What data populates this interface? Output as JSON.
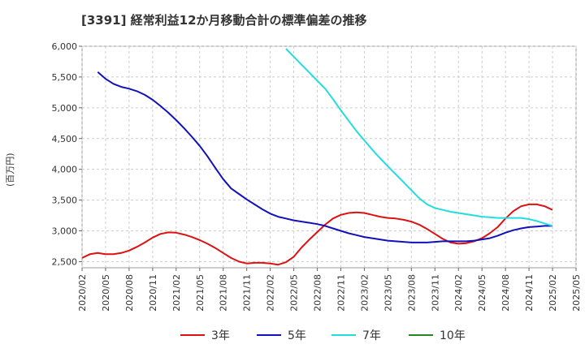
{
  "chart_data": {
    "type": "line",
    "title": "[3391]  経常利益12か月移動合計の標準偏差の推移",
    "ylabel": "(百万円)",
    "xlabel": "",
    "ylim": [
      2400,
      6000
    ],
    "yticks": [
      2500,
      3000,
      3500,
      4000,
      4500,
      5000,
      5500,
      6000
    ],
    "ytick_labels": [
      "2,500",
      "3,000",
      "3,500",
      "4,000",
      "4,500",
      "5,000",
      "5,500",
      "6,000"
    ],
    "xticks": [
      "2020/02",
      "2020/05",
      "2020/08",
      "2020/11",
      "2021/02",
      "2021/05",
      "2021/08",
      "2021/11",
      "2022/02",
      "2022/05",
      "2022/08",
      "2022/11",
      "2023/02",
      "2023/05",
      "2023/08",
      "2023/11",
      "2024/02",
      "2024/05",
      "2024/08",
      "2024/11",
      "2025/02",
      "2025/05"
    ],
    "grid": true,
    "legend_position": "bottom",
    "series": [
      {
        "name": "3年",
        "color": "#dd1111",
        "points": [
          [
            "2020/02",
            2560
          ],
          [
            "2020/03",
            2620
          ],
          [
            "2020/04",
            2640
          ],
          [
            "2020/05",
            2620
          ],
          [
            "2020/06",
            2620
          ],
          [
            "2020/07",
            2640
          ],
          [
            "2020/08",
            2680
          ],
          [
            "2020/09",
            2740
          ],
          [
            "2020/10",
            2810
          ],
          [
            "2020/11",
            2890
          ],
          [
            "2020/12",
            2950
          ],
          [
            "2021/01",
            2975
          ],
          [
            "2021/02",
            2970
          ],
          [
            "2021/03",
            2940
          ],
          [
            "2021/04",
            2900
          ],
          [
            "2021/05",
            2850
          ],
          [
            "2021/06",
            2790
          ],
          [
            "2021/07",
            2720
          ],
          [
            "2021/08",
            2640
          ],
          [
            "2021/09",
            2560
          ],
          [
            "2021/10",
            2500
          ],
          [
            "2021/11",
            2470
          ],
          [
            "2021/12",
            2480
          ],
          [
            "2022/01",
            2480
          ],
          [
            "2022/02",
            2470
          ],
          [
            "2022/03",
            2450
          ],
          [
            "2022/04",
            2490
          ],
          [
            "2022/05",
            2580
          ],
          [
            "2022/06",
            2730
          ],
          [
            "2022/07",
            2860
          ],
          [
            "2022/08",
            2980
          ],
          [
            "2022/09",
            3100
          ],
          [
            "2022/10",
            3200
          ],
          [
            "2022/11",
            3260
          ],
          [
            "2022/12",
            3290
          ],
          [
            "2023/01",
            3300
          ],
          [
            "2023/02",
            3290
          ],
          [
            "2023/03",
            3260
          ],
          [
            "2023/04",
            3230
          ],
          [
            "2023/05",
            3210
          ],
          [
            "2023/06",
            3200
          ],
          [
            "2023/07",
            3180
          ],
          [
            "2023/08",
            3150
          ],
          [
            "2023/09",
            3100
          ],
          [
            "2023/10",
            3030
          ],
          [
            "2023/11",
            2950
          ],
          [
            "2023/12",
            2870
          ],
          [
            "2024/01",
            2810
          ],
          [
            "2024/02",
            2790
          ],
          [
            "2024/03",
            2800
          ],
          [
            "2024/04",
            2830
          ],
          [
            "2024/05",
            2880
          ],
          [
            "2024/06",
            2960
          ],
          [
            "2024/07",
            3060
          ],
          [
            "2024/08",
            3200
          ],
          [
            "2024/09",
            3320
          ],
          [
            "2024/10",
            3400
          ],
          [
            "2024/11",
            3430
          ],
          [
            "2024/12",
            3430
          ],
          [
            "2025/01",
            3400
          ],
          [
            "2025/02",
            3340
          ]
        ]
      },
      {
        "name": "5年",
        "color": "#1111bb",
        "points": [
          [
            "2020/04",
            5580
          ],
          [
            "2020/05",
            5470
          ],
          [
            "2020/06",
            5390
          ],
          [
            "2020/07",
            5340
          ],
          [
            "2020/08",
            5310
          ],
          [
            "2020/09",
            5270
          ],
          [
            "2020/10",
            5210
          ],
          [
            "2020/11",
            5130
          ],
          [
            "2020/12",
            5030
          ],
          [
            "2021/01",
            4920
          ],
          [
            "2021/02",
            4800
          ],
          [
            "2021/03",
            4670
          ],
          [
            "2021/04",
            4530
          ],
          [
            "2021/05",
            4380
          ],
          [
            "2021/06",
            4210
          ],
          [
            "2021/07",
            4020
          ],
          [
            "2021/08",
            3840
          ],
          [
            "2021/09",
            3690
          ],
          [
            "2021/10",
            3600
          ],
          [
            "2021/11",
            3510
          ],
          [
            "2021/12",
            3430
          ],
          [
            "2022/01",
            3350
          ],
          [
            "2022/02",
            3280
          ],
          [
            "2022/03",
            3230
          ],
          [
            "2022/04",
            3200
          ],
          [
            "2022/05",
            3170
          ],
          [
            "2022/06",
            3150
          ],
          [
            "2022/07",
            3130
          ],
          [
            "2022/08",
            3110
          ],
          [
            "2022/09",
            3080
          ],
          [
            "2022/10",
            3040
          ],
          [
            "2022/11",
            3000
          ],
          [
            "2022/12",
            2960
          ],
          [
            "2023/01",
            2930
          ],
          [
            "2023/02",
            2900
          ],
          [
            "2023/03",
            2880
          ],
          [
            "2023/04",
            2860
          ],
          [
            "2023/05",
            2840
          ],
          [
            "2023/06",
            2830
          ],
          [
            "2023/07",
            2820
          ],
          [
            "2023/08",
            2810
          ],
          [
            "2023/09",
            2810
          ],
          [
            "2023/10",
            2810
          ],
          [
            "2023/11",
            2820
          ],
          [
            "2023/12",
            2830
          ],
          [
            "2024/01",
            2830
          ],
          [
            "2024/02",
            2830
          ],
          [
            "2024/03",
            2830
          ],
          [
            "2024/04",
            2840
          ],
          [
            "2024/05",
            2860
          ],
          [
            "2024/06",
            2880
          ],
          [
            "2024/07",
            2920
          ],
          [
            "2024/08",
            2970
          ],
          [
            "2024/09",
            3010
          ],
          [
            "2024/10",
            3040
          ],
          [
            "2024/11",
            3060
          ],
          [
            "2024/12",
            3070
          ],
          [
            "2025/01",
            3080
          ],
          [
            "2025/02",
            3080
          ]
        ]
      },
      {
        "name": "7年",
        "color": "#22dddd",
        "points": [
          [
            "2022/04",
            5960
          ],
          [
            "2022/05",
            5830
          ],
          [
            "2022/06",
            5700
          ],
          [
            "2022/07",
            5570
          ],
          [
            "2022/08",
            5440
          ],
          [
            "2022/09",
            5310
          ],
          [
            "2022/10",
            5140
          ],
          [
            "2022/11",
            4960
          ],
          [
            "2022/12",
            4790
          ],
          [
            "2023/01",
            4620
          ],
          [
            "2023/02",
            4470
          ],
          [
            "2023/03",
            4320
          ],
          [
            "2023/04",
            4180
          ],
          [
            "2023/05",
            4050
          ],
          [
            "2023/06",
            3920
          ],
          [
            "2023/07",
            3790
          ],
          [
            "2023/08",
            3660
          ],
          [
            "2023/09",
            3530
          ],
          [
            "2023/10",
            3430
          ],
          [
            "2023/11",
            3370
          ],
          [
            "2023/12",
            3340
          ],
          [
            "2024/01",
            3310
          ],
          [
            "2024/02",
            3290
          ],
          [
            "2024/03",
            3270
          ],
          [
            "2024/04",
            3250
          ],
          [
            "2024/05",
            3230
          ],
          [
            "2024/06",
            3220
          ],
          [
            "2024/07",
            3210
          ],
          [
            "2024/08",
            3210
          ],
          [
            "2024/09",
            3210
          ],
          [
            "2024/10",
            3210
          ],
          [
            "2024/11",
            3190
          ],
          [
            "2024/12",
            3160
          ],
          [
            "2025/01",
            3120
          ],
          [
            "2025/02",
            3080
          ]
        ]
      },
      {
        "name": "10年",
        "color": "#228822",
        "points": []
      }
    ]
  }
}
